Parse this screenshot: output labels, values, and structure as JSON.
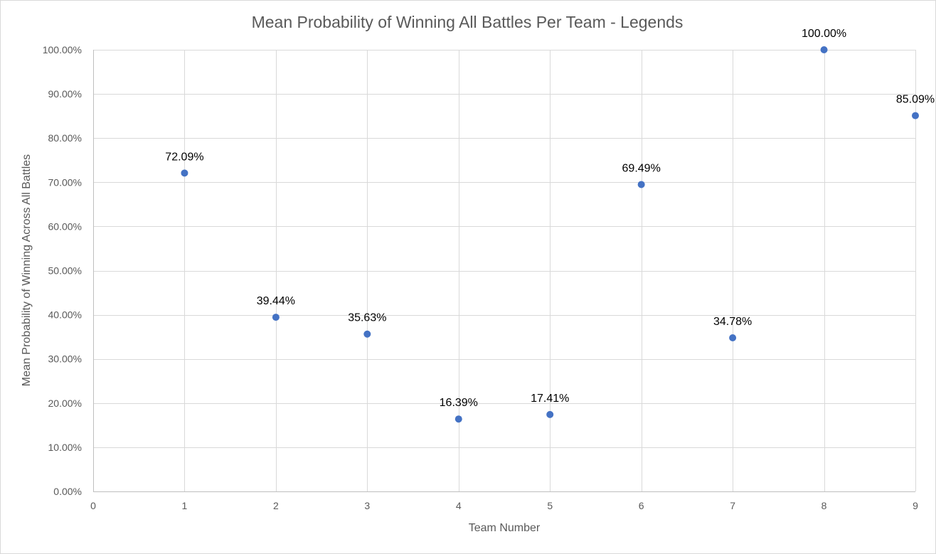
{
  "chart_data": {
    "type": "scatter",
    "title": "Mean Probability of Winning All Battles Per Team - Legends",
    "xlabel": "Team Number",
    "ylabel": "Mean Probability of Winning Across All Battles",
    "xlim": [
      0,
      9
    ],
    "ylim": [
      0,
      100
    ],
    "x_ticks": [
      0,
      1,
      2,
      3,
      4,
      5,
      6,
      7,
      8,
      9
    ],
    "x_tick_labels": [
      "0",
      "1",
      "2",
      "3",
      "4",
      "5",
      "6",
      "7",
      "8",
      "9"
    ],
    "y_ticks": [
      0,
      10,
      20,
      30,
      40,
      50,
      60,
      70,
      80,
      90,
      100
    ],
    "y_tick_labels": [
      "0.00%",
      "10.00%",
      "20.00%",
      "30.00%",
      "40.00%",
      "50.00%",
      "60.00%",
      "70.00%",
      "80.00%",
      "90.00%",
      "100.00%"
    ],
    "grid": true,
    "legend": "none",
    "marker_color": "#4472C4",
    "points": [
      {
        "x": 1,
        "y": 72.09,
        "label": "72.09%"
      },
      {
        "x": 2,
        "y": 39.44,
        "label": "39.44%"
      },
      {
        "x": 3,
        "y": 35.63,
        "label": "35.63%"
      },
      {
        "x": 4,
        "y": 16.39,
        "label": "16.39%"
      },
      {
        "x": 5,
        "y": 17.41,
        "label": "17.41%"
      },
      {
        "x": 6,
        "y": 69.49,
        "label": "69.49%"
      },
      {
        "x": 7,
        "y": 34.78,
        "label": "34.78%"
      },
      {
        "x": 8,
        "y": 100.0,
        "label": "100.00%"
      },
      {
        "x": 9,
        "y": 85.09,
        "label": "85.09%"
      }
    ]
  }
}
